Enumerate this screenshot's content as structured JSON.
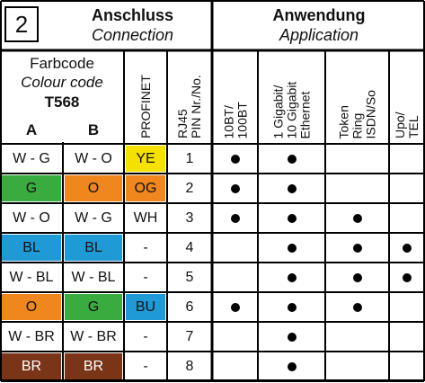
{
  "header": {
    "section_number": "2",
    "connection_de": "Anschluss",
    "connection_en": "Connection",
    "application_de": "Anwendung",
    "application_en": "Application"
  },
  "subheader": {
    "colour_code_de": "Farbcode",
    "colour_code_en": "Colour code",
    "standard": "T568",
    "col_a": "A",
    "col_b": "B",
    "profinet": "PROFINET",
    "rj45": "RJ45\nPIN Nr./No.",
    "app_cols": [
      "10BT/\n100BT",
      "1 Gigabit/\n10 Gigabit\nEthernet",
      "Token\nRing\nISDN/So",
      "Upo/\nTEL"
    ]
  },
  "colors": {
    "green": "#3aab3f",
    "orange": "#f0861e",
    "blue": "#1f9ad6",
    "yellow": "#f5e100",
    "brown": "#7a3417",
    "white": "#ffffff"
  },
  "rows": [
    {
      "a": "W - G",
      "a_color": "white",
      "b": "W - O",
      "b_color": "white",
      "profinet": "YE",
      "p_color": "yellow",
      "pin": "1",
      "apps": [
        true,
        true,
        false,
        false
      ]
    },
    {
      "a": "G",
      "a_color": "green",
      "b": "O",
      "b_color": "orange",
      "profinet": "OG",
      "p_color": "orange",
      "pin": "2",
      "apps": [
        true,
        true,
        false,
        false
      ]
    },
    {
      "a": "W - O",
      "a_color": "white",
      "b": "W - G",
      "b_color": "white",
      "profinet": "WH",
      "p_color": "white",
      "pin": "3",
      "apps": [
        true,
        true,
        true,
        false
      ]
    },
    {
      "a": "BL",
      "a_color": "blue",
      "b": "BL",
      "b_color": "blue",
      "profinet": "-",
      "p_color": "white",
      "pin": "4",
      "apps": [
        false,
        true,
        true,
        true
      ]
    },
    {
      "a": "W - BL",
      "a_color": "white",
      "b": "W - BL",
      "b_color": "white",
      "profinet": "-",
      "p_color": "white",
      "pin": "5",
      "apps": [
        false,
        true,
        true,
        true
      ]
    },
    {
      "a": "O",
      "a_color": "orange",
      "b": "G",
      "b_color": "green",
      "profinet": "BU",
      "p_color": "blue",
      "pin": "6",
      "apps": [
        true,
        true,
        true,
        false
      ]
    },
    {
      "a": "W - BR",
      "a_color": "white",
      "b": "W - BR",
      "b_color": "white",
      "profinet": "-",
      "p_color": "white",
      "pin": "7",
      "apps": [
        false,
        true,
        false,
        false
      ]
    },
    {
      "a": "BR",
      "a_color": "brown",
      "b": "BR",
      "b_color": "brown",
      "profinet": "-",
      "p_color": "white",
      "pin": "8",
      "apps": [
        false,
        true,
        false,
        false
      ]
    }
  ]
}
